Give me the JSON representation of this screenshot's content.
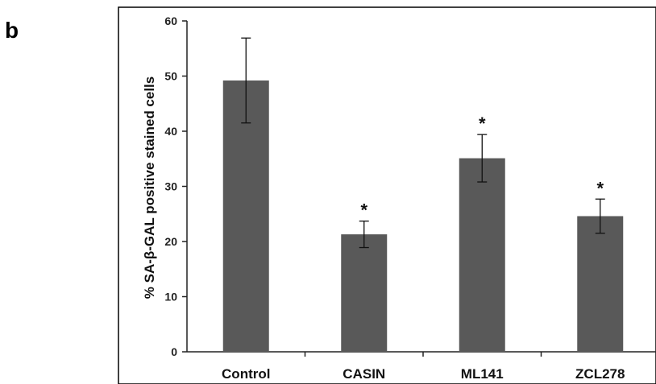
{
  "panel_label": "b",
  "chart_data": {
    "type": "bar",
    "title": "",
    "xlabel": "",
    "ylabel": "% SA-β-GAL  positive stained cells",
    "categories": [
      "Control",
      "CASIN",
      "ML141",
      "ZCL278"
    ],
    "values": [
      49.2,
      21.3,
      35.1,
      24.6
    ],
    "errors": [
      7.7,
      2.4,
      4.3,
      3.1
    ],
    "significance": [
      "",
      "*",
      "*",
      "*"
    ],
    "ylim": [
      0,
      60
    ],
    "yticks": [
      0,
      10,
      20,
      30,
      40,
      50,
      60
    ],
    "bar_color": "#595959",
    "grid": false
  }
}
